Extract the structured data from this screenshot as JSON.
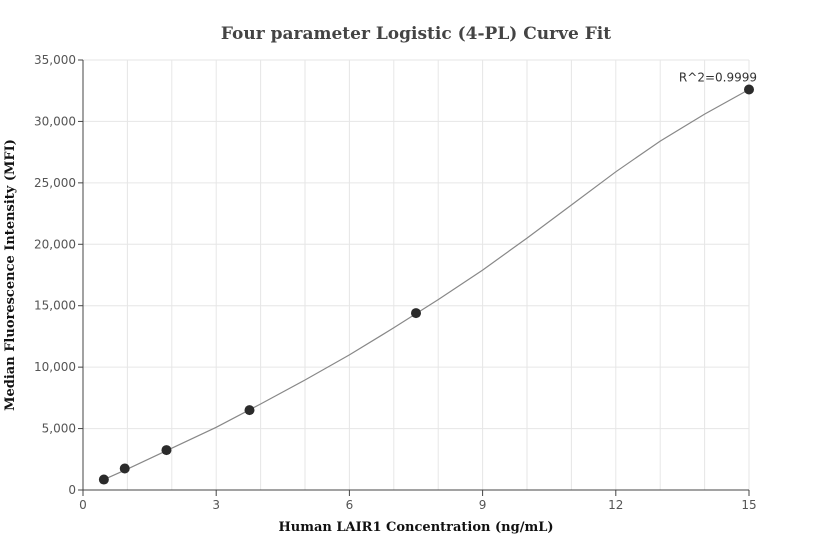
{
  "chart_data": {
    "type": "scatter",
    "title": "Four parameter Logistic (4-PL) Curve Fit",
    "xlabel": "Human LAIR1 Concentration (ng/mL)",
    "ylabel": "Median Fluorescence Intensity (MFI)",
    "xlim": [
      0,
      15
    ],
    "ylim": [
      0,
      35000
    ],
    "xticks": [
      0,
      3,
      6,
      9,
      12,
      15
    ],
    "xtick_labels": [
      "0",
      "3",
      "6",
      "9",
      "12",
      "15"
    ],
    "yticks": [
      0,
      5000,
      10000,
      15000,
      20000,
      25000,
      30000,
      35000
    ],
    "ytick_labels": [
      "0",
      "5,000",
      "10,000",
      "15,000",
      "20,000",
      "25,000",
      "30,000",
      "35,000"
    ],
    "grid": true,
    "series": [
      {
        "x": [
          0.47,
          0.94,
          1.88,
          3.75,
          7.5,
          15
        ],
        "y": [
          850,
          1750,
          3250,
          6500,
          14400,
          32600
        ],
        "color": "#2b2b2b"
      }
    ],
    "fit_curve": {
      "x": [
        0.47,
        1,
        2,
        3,
        4,
        5,
        6,
        7,
        8,
        9,
        10,
        11,
        12,
        13,
        14,
        15
      ],
      "y": [
        850,
        1700,
        3400,
        5100,
        7000,
        8950,
        11000,
        13200,
        15500,
        17900,
        20500,
        23200,
        25900,
        28400,
        30600,
        32600
      ],
      "color": "#888888"
    },
    "annotations": [
      {
        "text": "R^2=0.9999",
        "x": 15,
        "y": 32600
      }
    ]
  }
}
